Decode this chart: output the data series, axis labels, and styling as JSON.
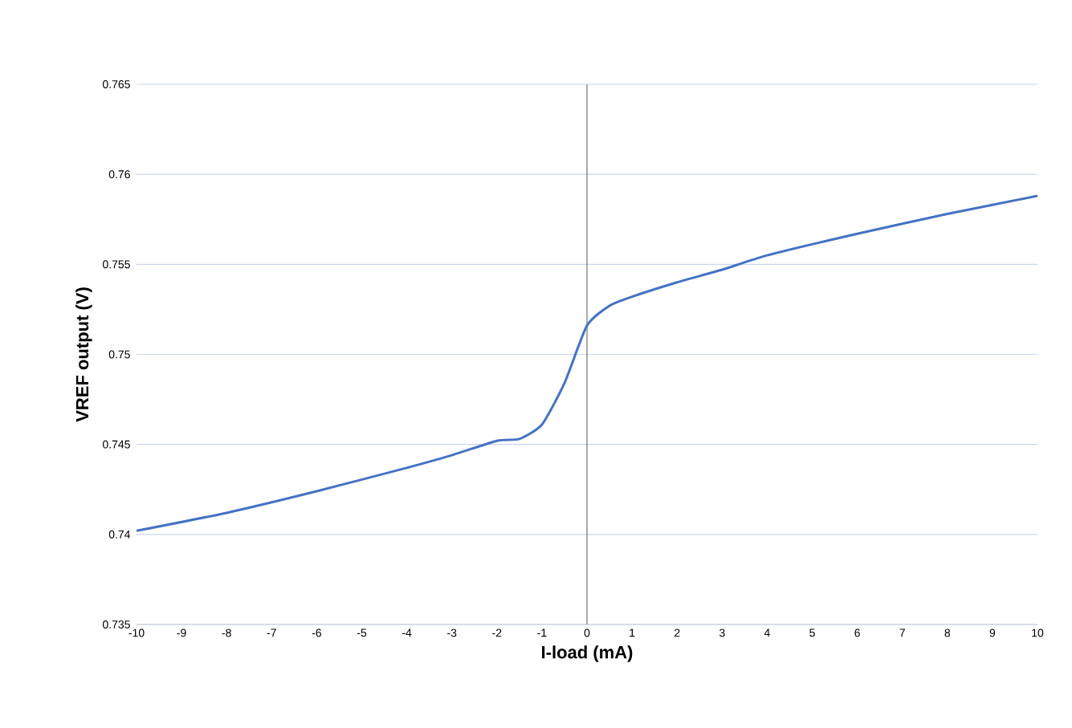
{
  "chart_data": {
    "type": "line",
    "xlabel": "I-load (mA)",
    "ylabel": "VREF output (V)",
    "x": [
      -10,
      -8,
      -6,
      -4,
      -3,
      -2,
      -1.5,
      -1,
      -0.5,
      0,
      0.5,
      1,
      2,
      3,
      4,
      6,
      8,
      10
    ],
    "series": [
      {
        "color": "#4472c4",
        "values": [
          0.7402,
          0.7412,
          0.7424,
          0.7437,
          0.7444,
          0.7452,
          0.7453,
          0.7461,
          0.7484,
          0.7516,
          0.7527,
          0.7532,
          0.754,
          0.7547,
          0.7555,
          0.7567,
          0.7578,
          0.7588
        ]
      }
    ],
    "xlim": [
      -10,
      10
    ],
    "ylim": [
      0.735,
      0.765
    ],
    "xticks": [
      -10,
      -9,
      -8,
      -7,
      -6,
      -5,
      -4,
      -3,
      -2,
      -1,
      0,
      1,
      2,
      3,
      4,
      5,
      6,
      7,
      8,
      9,
      10
    ],
    "yticks": [
      0.735,
      0.74,
      0.745,
      0.75,
      0.755,
      0.76,
      0.765
    ],
    "grid": "y",
    "marker": "none",
    "line_style": "solid",
    "ref_lines": [
      {
        "axis": "x",
        "value": 0,
        "color": "#595959"
      }
    ]
  }
}
